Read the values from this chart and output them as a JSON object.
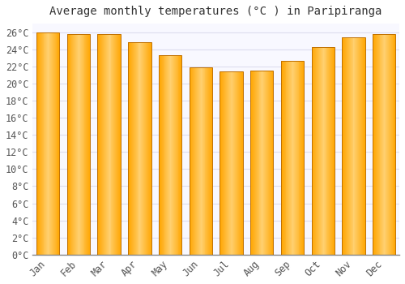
{
  "months": [
    "Jan",
    "Feb",
    "Mar",
    "Apr",
    "May",
    "Jun",
    "Jul",
    "Aug",
    "Sep",
    "Oct",
    "Nov",
    "Dec"
  ],
  "values": [
    26.0,
    25.8,
    25.8,
    24.8,
    23.3,
    21.9,
    21.4,
    21.5,
    22.6,
    24.3,
    25.4,
    25.8
  ],
  "title": "Average monthly temperatures (°C ) in Paripiranga",
  "bar_color_main": "#FFA500",
  "bar_color_light": "#FFD070",
  "bar_color_dark": "#E08000",
  "bar_color_edge": "#C07000",
  "background_color": "#ffffff",
  "plot_bg_color": "#f8f8ff",
  "grid_color": "#ddddee",
  "ylim": [
    0,
    27
  ],
  "ytick_step": 2,
  "title_fontsize": 10,
  "tick_fontsize": 8.5,
  "font_family": "monospace"
}
